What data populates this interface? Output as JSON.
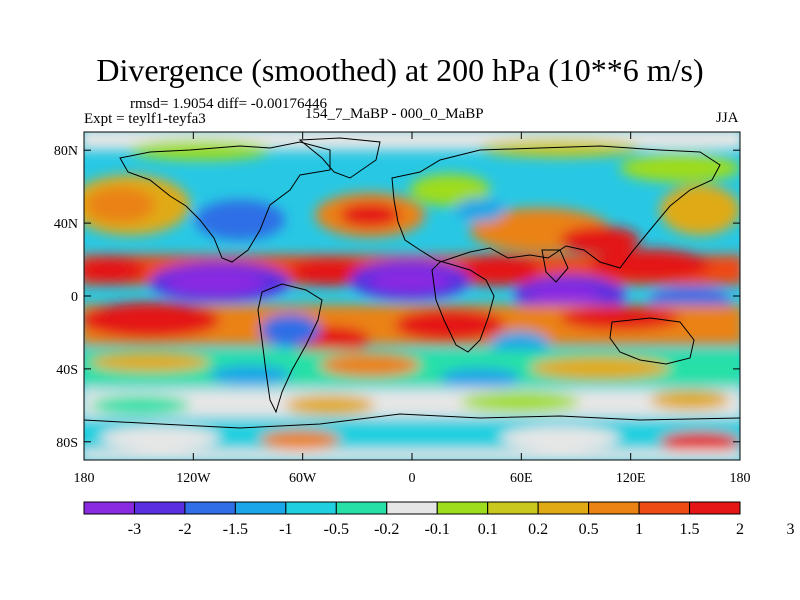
{
  "title": "Divergence (smoothed) at 200 hPa (10**6 m/s)",
  "stats": "rmsd= 1.9054 diff= -0.00176446",
  "experiment": "Expt = teylf1-teyfa3",
  "case_label": "154_7_MaBP - 000_0_MaBP",
  "season": "JJA",
  "lat_ticks": [
    {
      "value": 80,
      "label": "80N"
    },
    {
      "value": 40,
      "label": "40N"
    },
    {
      "value": 0,
      "label": "0"
    },
    {
      "value": -40,
      "label": "40S"
    },
    {
      "value": -80,
      "label": "80S"
    }
  ],
  "lon_ticks": [
    {
      "value": -180,
      "label": "180"
    },
    {
      "value": -120,
      "label": "120W"
    },
    {
      "value": -60,
      "label": "60W"
    },
    {
      "value": 0,
      "label": "0"
    },
    {
      "value": 60,
      "label": "60E"
    },
    {
      "value": 120,
      "label": "120E"
    },
    {
      "value": 180,
      "label": "180"
    }
  ],
  "colorbar": {
    "colors": [
      "#8a2be2",
      "#5a2fe0",
      "#2f6ee6",
      "#1aa6e8",
      "#20d0e0",
      "#26e0a8",
      "#e6e6e6",
      "#9edc1e",
      "#c8c81e",
      "#e0aa14",
      "#ea8214",
      "#ee4a14",
      "#e41616"
    ],
    "labels": [
      "-3",
      "-2",
      "-1.5",
      "-1",
      "-0.5",
      "-0.2",
      "-0.1",
      "0.1",
      "0.2",
      "0.5",
      "1",
      "1.5",
      "2",
      "3"
    ]
  }
}
